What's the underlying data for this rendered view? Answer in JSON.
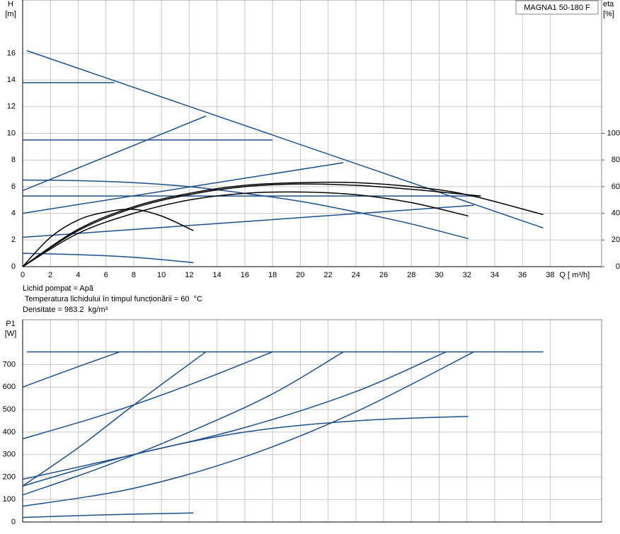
{
  "chart_data": [
    {
      "type": "line",
      "y_label": [
        "H",
        "[m]"
      ],
      "y2_label": [
        "eta",
        "[%]"
      ],
      "x_label": "Q [ m³/h]",
      "legend_box": "MAGNA1 50-180 F",
      "notes": [
        "Lichid pompat = Apă",
        " Temperatura lichidului în timpul funcționării = 60  °C",
        "Densitate = 983.2  kg/m³"
      ],
      "xlim": [
        0,
        41.7
      ],
      "xticks": [
        0,
        2,
        4,
        6,
        8,
        10,
        12,
        14,
        16,
        18,
        20,
        22,
        24,
        26,
        28,
        30,
        32,
        34,
        36,
        38
      ],
      "ylim": [
        0,
        20
      ],
      "yticks": [
        0,
        2,
        4,
        6,
        8,
        10,
        12,
        14,
        16
      ],
      "y2lim": [
        0,
        200
      ],
      "y2ticks": [
        0,
        20,
        40,
        60,
        80,
        100
      ],
      "grid": true,
      "series": [
        {
          "color": "#1c4f8a",
          "x": [
            0.3,
            37.5
          ],
          "values": [
            16.2,
            2.9
          ]
        },
        {
          "color": "#1c4f8a",
          "x": [
            0,
            6.6
          ],
          "values": [
            13.8,
            13.8
          ]
        },
        {
          "color": "#1c4f8a",
          "x": [
            0,
            18
          ],
          "values": [
            9.5,
            9.5
          ]
        },
        {
          "color": "#1c4f8a",
          "x": [
            0,
            33
          ],
          "values": [
            5.3,
            5.3
          ]
        },
        {
          "color": "#1c4f8a",
          "x": [
            0,
            13.2
          ],
          "values": [
            5.7,
            11.3
          ]
        },
        {
          "color": "#1c4f8a",
          "x": [
            0,
            23.1
          ],
          "values": [
            4.0,
            7.8
          ]
        },
        {
          "color": "#1c4f8a",
          "x": [
            0,
            32.5
          ],
          "values": [
            2.2,
            4.6
          ]
        },
        {
          "color": "#1c4f8a",
          "x": [
            0,
            4,
            8,
            12,
            16,
            20,
            24,
            28,
            32.1
          ],
          "values": [
            6.5,
            6.45,
            6.3,
            6.0,
            5.5,
            4.9,
            4.1,
            3.2,
            2.1
          ]
        },
        {
          "color": "#1c4f8a",
          "x": [
            0,
            4,
            8,
            12.3
          ],
          "values": [
            1.0,
            0.9,
            0.7,
            0.3
          ]
        },
        {
          "color": "#000000",
          "axis": "y2",
          "x": [
            0,
            2,
            4,
            6,
            8,
            10,
            12.3
          ],
          "values": [
            0,
            22,
            35,
            41,
            43,
            38,
            27
          ]
        },
        {
          "color": "#000000",
          "axis": "y2",
          "x": [
            0,
            4,
            8,
            12,
            16,
            20,
            24,
            28,
            32.1
          ],
          "values": [
            0,
            25,
            40,
            50,
            55,
            56,
            54,
            48,
            38
          ]
        },
        {
          "color": "#000000",
          "axis": "y2",
          "x": [
            0,
            4,
            8,
            12,
            16,
            20,
            24,
            28,
            33
          ],
          "values": [
            0,
            27,
            44,
            54,
            60,
            62,
            61,
            58,
            53
          ]
        },
        {
          "color": "#000000",
          "axis": "y2",
          "x": [
            0,
            4,
            8,
            12,
            16,
            20,
            24,
            28,
            32,
            37.5
          ],
          "values": [
            0,
            28,
            45,
            55,
            61,
            63,
            63,
            60,
            54,
            39
          ]
        }
      ]
    },
    {
      "type": "line",
      "y_label": [
        "P1",
        "[W]"
      ],
      "xlim": [
        0,
        41.7
      ],
      "xticks": [
        0,
        2,
        4,
        6,
        8,
        10,
        12,
        14,
        16,
        18,
        20,
        22,
        24,
        26,
        28,
        30,
        32,
        34,
        36,
        38
      ],
      "show_xtick_labels": false,
      "ylim": [
        0,
        900
      ],
      "yticks": [
        0,
        100,
        200,
        300,
        400,
        500,
        600,
        700
      ],
      "grid": true,
      "series": [
        {
          "color": "#1c4f8a",
          "x": [
            0.3,
            37.5
          ],
          "values": [
            757,
            757
          ]
        },
        {
          "color": "#1c4f8a",
          "x": [
            0,
            3.5,
            7
          ],
          "values": [
            600,
            680,
            757
          ]
        },
        {
          "color": "#1c4f8a",
          "x": [
            0,
            6,
            12,
            18
          ],
          "values": [
            370,
            480,
            610,
            757
          ]
        },
        {
          "color": "#1c4f8a",
          "x": [
            0,
            4,
            8,
            13.2
          ],
          "values": [
            160,
            330,
            520,
            757
          ]
        },
        {
          "color": "#1c4f8a",
          "x": [
            0,
            6,
            12,
            18,
            23.1
          ],
          "values": [
            120,
            250,
            400,
            570,
            757
          ]
        },
        {
          "color": "#1c4f8a",
          "x": [
            0,
            8,
            16,
            24,
            30.5
          ],
          "values": [
            190,
            300,
            420,
            580,
            757
          ]
        },
        {
          "color": "#1c4f8a",
          "x": [
            0,
            8,
            16,
            24,
            32.5
          ],
          "values": [
            70,
            150,
            290,
            490,
            757
          ]
        },
        {
          "color": "#1c4f8a",
          "x": [
            0,
            8,
            16,
            24,
            32.1
          ],
          "values": [
            160,
            300,
            400,
            450,
            470
          ]
        },
        {
          "color": "#1c4f8a",
          "x": [
            0,
            6,
            12.3
          ],
          "values": [
            20,
            32,
            40
          ]
        }
      ]
    }
  ]
}
